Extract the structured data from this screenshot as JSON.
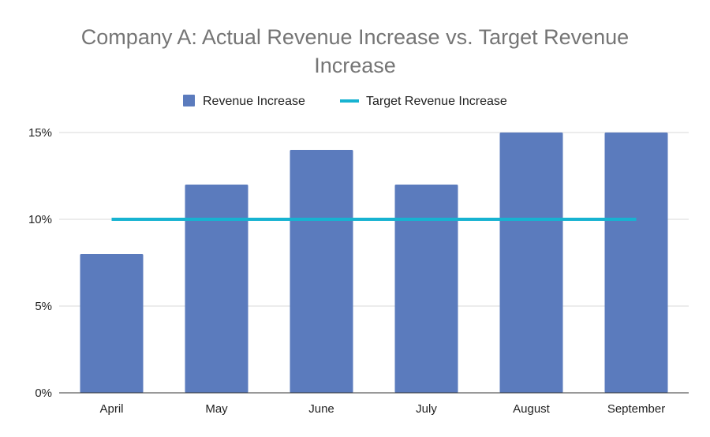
{
  "chart_data": {
    "type": "bar",
    "title_lines": [
      "Company A: Actual Revenue Increase vs. Target Revenue",
      "Increase"
    ],
    "categories": [
      "April",
      "May",
      "June",
      "July",
      "August",
      "September"
    ],
    "series": [
      {
        "name": "Revenue Increase",
        "kind": "bar",
        "values": [
          8,
          12,
          14,
          12,
          15,
          15
        ],
        "color": "#5b7bbd"
      },
      {
        "name": "Target Revenue Increase",
        "kind": "line",
        "values": [
          10,
          10,
          10,
          10,
          10,
          10
        ],
        "color": "#17b3d1"
      }
    ],
    "y_ticks": [
      "0%",
      "5%",
      "10%",
      "15%"
    ],
    "ylim": [
      0,
      15
    ],
    "grid": true,
    "legend_position": "top-center",
    "xlabel": "",
    "ylabel": ""
  }
}
